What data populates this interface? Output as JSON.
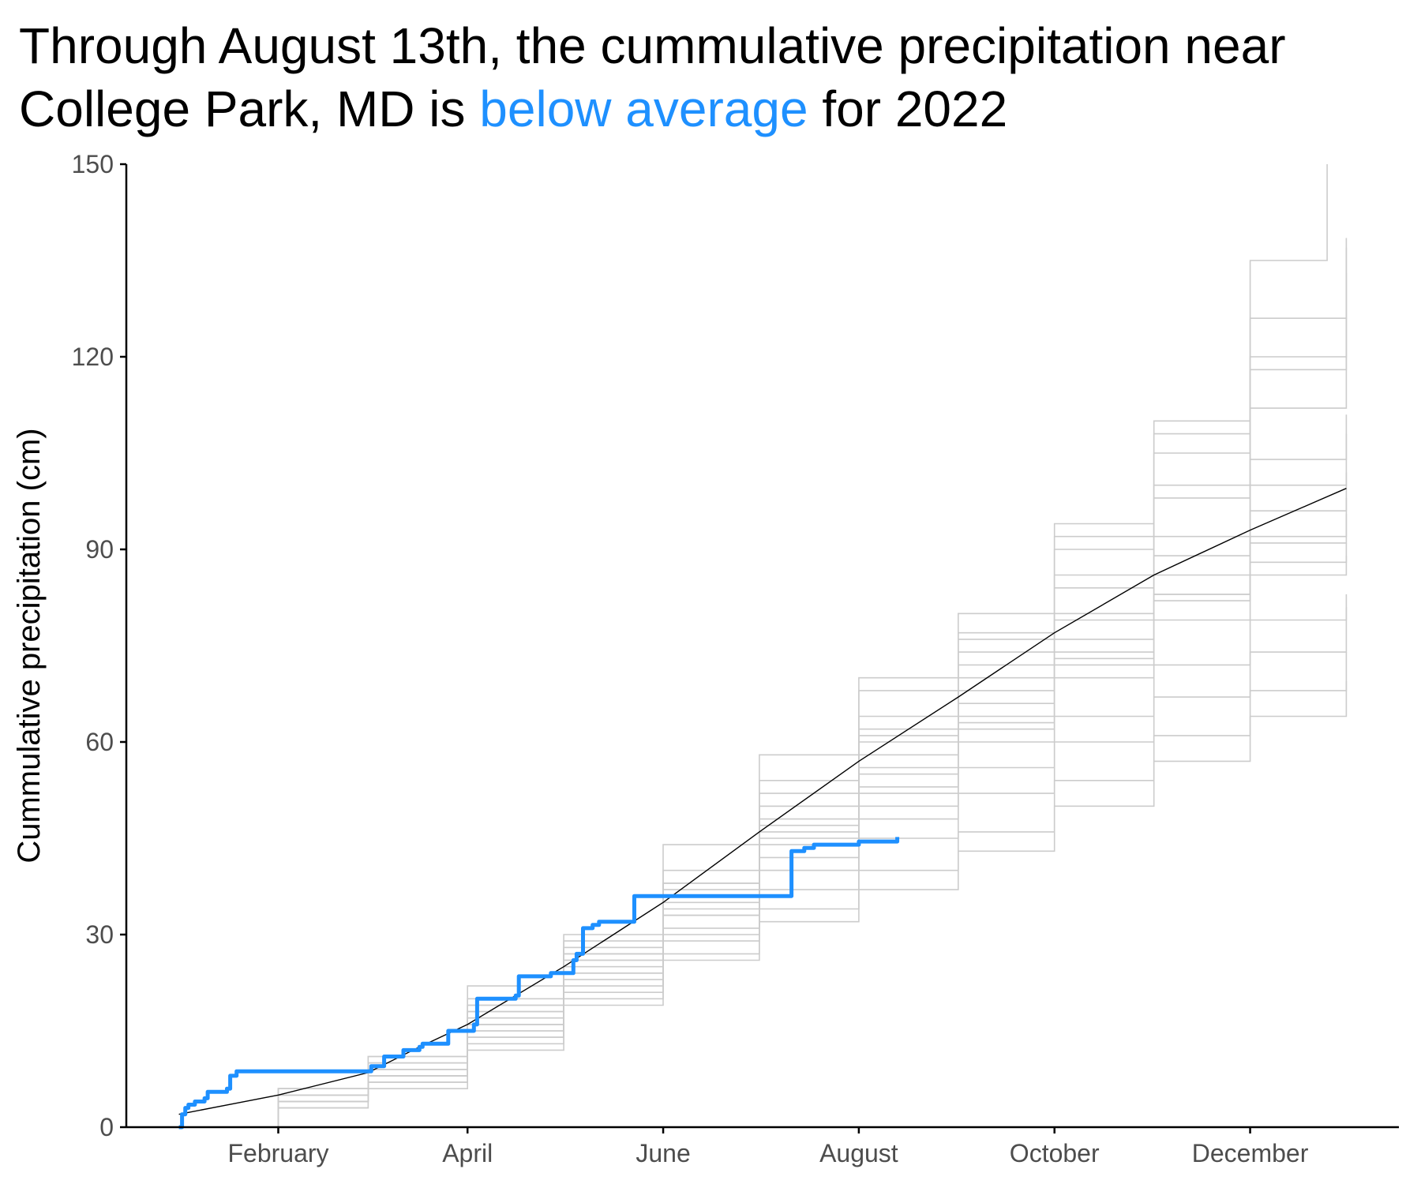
{
  "title": {
    "prefix": "Through August 13th, the cummulative precipitation near College Park, MD is ",
    "highlight": "below average",
    "suffix": " for 2022",
    "highlight_color": "#1e90ff"
  },
  "colors": {
    "current_year": "#1e90ff",
    "average": "#000000",
    "historical": "#cccccc",
    "axis": "#000000"
  },
  "chart_data": {
    "type": "line",
    "title": "Through August 13th, the cummulative precipitation near College Park, MD is below average for 2022",
    "xlabel": "",
    "ylabel": "Cummulative precipitation (cm)",
    "xlim": [
      "2022-01-01",
      "2022-12-31"
    ],
    "ylim": [
      0,
      150
    ],
    "x_ticks": [
      {
        "date": "2022-02-01",
        "label": "February"
      },
      {
        "date": "2022-04-01",
        "label": "April"
      },
      {
        "date": "2022-06-01",
        "label": "June"
      },
      {
        "date": "2022-08-01",
        "label": "August"
      },
      {
        "date": "2022-10-01",
        "label": "October"
      },
      {
        "date": "2022-12-01",
        "label": "December"
      }
    ],
    "y_ticks": [
      0,
      30,
      60,
      90,
      120,
      150
    ],
    "grid": false,
    "series": [
      {
        "name": "",
        "role": "current",
        "x": [
          "2022-01-01",
          "2022-01-02",
          "2022-01-03",
          "2022-01-04",
          "2022-01-06",
          "2022-01-07",
          "2022-01-09",
          "2022-01-10",
          "2022-01-15",
          "2022-01-16",
          "2022-01-17",
          "2022-01-19",
          "2022-03-01",
          "2022-03-02",
          "2022-03-05",
          "2022-03-06",
          "2022-03-11",
          "2022-03-12",
          "2022-03-17",
          "2022-03-18",
          "2022-03-25",
          "2022-03-26",
          "2022-04-02",
          "2022-04-03",
          "2022-04-04",
          "2022-04-16",
          "2022-04-17",
          "2022-04-27",
          "2022-05-03",
          "2022-05-04",
          "2022-05-05",
          "2022-05-07",
          "2022-05-10",
          "2022-05-12",
          "2022-05-22",
          "2022-05-23",
          "2022-07-10",
          "2022-07-11",
          "2022-07-15",
          "2022-07-18",
          "2022-08-01",
          "2022-08-13"
        ],
        "y": [
          0,
          2,
          3,
          3.5,
          4,
          4,
          4.5,
          5.5,
          5.5,
          6,
          8,
          8.7,
          8.7,
          9.5,
          9.5,
          11,
          11,
          12,
          12.5,
          13,
          13,
          15,
          15,
          16,
          20,
          20.5,
          23.5,
          24,
          24,
          26,
          27,
          31,
          31.5,
          32,
          32,
          36,
          36,
          43,
          43.5,
          44,
          44.5,
          45.2
        ]
      },
      {
        "name": "",
        "role": "average",
        "x": [
          "2022-01-01",
          "2022-02-01",
          "2022-03-01",
          "2022-03-15",
          "2022-04-01",
          "2022-05-01",
          "2022-06-01",
          "2022-07-01",
          "2022-08-01",
          "2022-09-01",
          "2022-10-01",
          "2022-11-01",
          "2022-12-01",
          "2022-12-31"
        ],
        "y": [
          2,
          5,
          8.5,
          12,
          16,
          25,
          35,
          46,
          57,
          67,
          77,
          86,
          93,
          99.5
        ]
      },
      {
        "name": "",
        "role": "historical",
        "x": [
          "2022-01-01",
          "2022-02-01",
          "2022-03-01",
          "2022-04-01",
          "2022-05-01",
          "2022-06-01",
          "2022-07-01",
          "2022-08-01",
          "2022-09-01",
          "2022-10-01",
          "2022-11-01",
          "2022-12-01",
          "2022-12-25"
        ],
        "y": [
          0,
          6,
          11,
          22,
          30,
          44,
          58,
          70,
          76,
          92,
          110,
          135,
          150
        ]
      },
      {
        "name": "",
        "role": "historical",
        "x": [
          "2022-01-01",
          "2022-02-01",
          "2022-03-01",
          "2022-04-01",
          "2022-05-01",
          "2022-06-01",
          "2022-07-01",
          "2022-08-01",
          "2022-09-01",
          "2022-10-01",
          "2022-11-01",
          "2022-12-01",
          "2022-12-31"
        ],
        "y": [
          0,
          5,
          10,
          20,
          29,
          40,
          54,
          68,
          80,
          94,
          108,
          126,
          138.5
        ]
      },
      {
        "name": "",
        "role": "historical",
        "x": [
          "2022-01-01",
          "2022-02-01",
          "2022-03-01",
          "2022-04-01",
          "2022-05-01",
          "2022-06-01",
          "2022-07-01",
          "2022-08-01",
          "2022-09-01",
          "2022-10-01",
          "2022-11-01",
          "2022-12-01",
          "2022-12-31"
        ],
        "y": [
          0,
          4,
          8,
          17,
          27,
          38,
          52,
          64,
          77,
          90,
          105,
          120,
          137
        ]
      },
      {
        "name": "",
        "role": "historical",
        "x": [
          "2022-01-01",
          "2022-02-01",
          "2022-03-01",
          "2022-04-01",
          "2022-05-01",
          "2022-06-01",
          "2022-07-01",
          "2022-08-01",
          "2022-09-01",
          "2022-10-01",
          "2022-11-01",
          "2022-12-01",
          "2022-12-31"
        ],
        "y": [
          0,
          5,
          9,
          18,
          25,
          36,
          50,
          62,
          74,
          86,
          100,
          118,
          133
        ]
      },
      {
        "name": "",
        "role": "historical",
        "x": [
          "2022-01-01",
          "2022-02-01",
          "2022-03-01",
          "2022-04-01",
          "2022-05-01",
          "2022-06-01",
          "2022-07-01",
          "2022-08-01",
          "2022-09-01",
          "2022-10-01",
          "2022-11-01",
          "2022-12-01",
          "2022-12-31"
        ],
        "y": [
          0,
          4,
          9,
          16,
          26,
          36,
          48,
          60,
          72,
          84,
          98,
          112,
          126
        ]
      },
      {
        "name": "",
        "role": "historical",
        "x": [
          "2022-01-01",
          "2022-02-01",
          "2022-03-01",
          "2022-04-01",
          "2022-05-01",
          "2022-06-01",
          "2022-07-01",
          "2022-08-01",
          "2022-09-01",
          "2022-10-01",
          "2022-11-01",
          "2022-12-01",
          "2022-12-31"
        ],
        "y": [
          0,
          6,
          10,
          19,
          28,
          38,
          50,
          61,
          70,
          80,
          92,
          104,
          111
        ]
      },
      {
        "name": "",
        "role": "historical",
        "x": [
          "2022-01-01",
          "2022-02-01",
          "2022-03-01",
          "2022-04-01",
          "2022-05-01",
          "2022-06-01",
          "2022-07-01",
          "2022-08-01",
          "2022-09-01",
          "2022-10-01",
          "2022-11-01",
          "2022-12-01",
          "2022-12-31"
        ],
        "y": [
          0,
          5,
          9,
          17,
          26,
          35,
          47,
          58,
          68,
          79,
          89,
          100,
          108
        ]
      },
      {
        "name": "",
        "role": "historical",
        "x": [
          "2022-01-01",
          "2022-02-01",
          "2022-03-01",
          "2022-04-01",
          "2022-05-01",
          "2022-06-01",
          "2022-07-01",
          "2022-08-01",
          "2022-09-01",
          "2022-10-01",
          "2022-11-01",
          "2022-12-01",
          "2022-12-31"
        ],
        "y": [
          0,
          4,
          8,
          15,
          24,
          33,
          45,
          56,
          66,
          76,
          86,
          96,
          102
        ]
      },
      {
        "name": "",
        "role": "historical",
        "x": [
          "2022-01-01",
          "2022-02-01",
          "2022-03-01",
          "2022-04-01",
          "2022-05-01",
          "2022-06-01",
          "2022-07-01",
          "2022-08-01",
          "2022-09-01",
          "2022-10-01",
          "2022-11-01",
          "2022-12-01",
          "2022-12-31"
        ],
        "y": [
          0,
          5,
          10,
          18,
          27,
          34,
          44,
          53,
          63,
          73,
          83,
          91,
          95.5
        ]
      },
      {
        "name": "",
        "role": "historical",
        "x": [
          "2022-01-01",
          "2022-02-01",
          "2022-03-01",
          "2022-04-01",
          "2022-05-01",
          "2022-06-01",
          "2022-07-01",
          "2022-08-01",
          "2022-09-01",
          "2022-10-01",
          "2022-11-01",
          "2022-12-01",
          "2022-12-31"
        ],
        "y": [
          0,
          6,
          9,
          16,
          24,
          33,
          42,
          52,
          62,
          72,
          82,
          88,
          91
        ]
      },
      {
        "name": "",
        "role": "historical",
        "x": [
          "2022-01-01",
          "2022-02-01",
          "2022-03-01",
          "2022-04-01",
          "2022-05-01",
          "2022-06-01",
          "2022-07-01",
          "2022-08-01",
          "2022-09-01",
          "2022-10-01",
          "2022-11-01",
          "2022-12-01",
          "2022-12-31"
        ],
        "y": [
          0,
          4,
          7,
          14,
          22,
          30,
          40,
          50,
          60,
          70,
          79,
          86,
          89
        ]
      },
      {
        "name": "",
        "role": "historical",
        "x": [
          "2022-01-01",
          "2022-02-01",
          "2022-03-01",
          "2022-04-01",
          "2022-05-01",
          "2022-06-01",
          "2022-07-01",
          "2022-08-01",
          "2022-09-01",
          "2022-10-01",
          "2022-11-01",
          "2022-12-01",
          "2022-12-31"
        ],
        "y": [
          0,
          5,
          8,
          15,
          23,
          31,
          40,
          48,
          56,
          64,
          72,
          79,
          83
        ]
      },
      {
        "name": "",
        "role": "historical",
        "x": [
          "2022-01-01",
          "2022-02-01",
          "2022-03-01",
          "2022-04-01",
          "2022-05-01",
          "2022-06-01",
          "2022-07-01",
          "2022-08-01",
          "2022-09-01",
          "2022-10-01",
          "2022-11-01",
          "2022-12-01",
          "2022-12-31"
        ],
        "y": [
          0,
          3,
          7,
          14,
          21,
          29,
          37,
          45,
          52,
          60,
          67,
          74,
          81
        ]
      },
      {
        "name": "",
        "role": "historical",
        "x": [
          "2022-01-01",
          "2022-02-01",
          "2022-03-01",
          "2022-04-01",
          "2022-05-01",
          "2022-06-01",
          "2022-07-01",
          "2022-08-01",
          "2022-09-01",
          "2022-10-01",
          "2022-11-01",
          "2022-12-01",
          "2022-12-31"
        ],
        "y": [
          0,
          4,
          8,
          13,
          20,
          27,
          34,
          40,
          46,
          54,
          61,
          68,
          74
        ]
      },
      {
        "name": "",
        "role": "historical",
        "x": [
          "2022-01-01",
          "2022-02-01",
          "2022-03-01",
          "2022-04-01",
          "2022-05-01",
          "2022-06-01",
          "2022-07-01",
          "2022-08-01",
          "2022-09-01",
          "2022-10-01",
          "2022-11-01",
          "2022-12-01",
          "2022-12-31"
        ],
        "y": [
          0,
          3,
          6,
          12,
          19,
          26,
          32,
          37,
          43,
          50,
          57,
          64,
          69.5
        ]
      },
      {
        "name": "",
        "role": "historical",
        "x": [
          "2022-01-01",
          "2022-02-01",
          "2022-03-01",
          "2022-04-01",
          "2022-05-01",
          "2022-06-01",
          "2022-07-01",
          "2022-08-01",
          "2022-09-01",
          "2022-10-01",
          "2022-11-01",
          "2022-12-01",
          "2022-12-31"
        ],
        "y": [
          0,
          6,
          11,
          19,
          28,
          37,
          46,
          55,
          64,
          74,
          83,
          92,
          98
        ]
      }
    ]
  }
}
